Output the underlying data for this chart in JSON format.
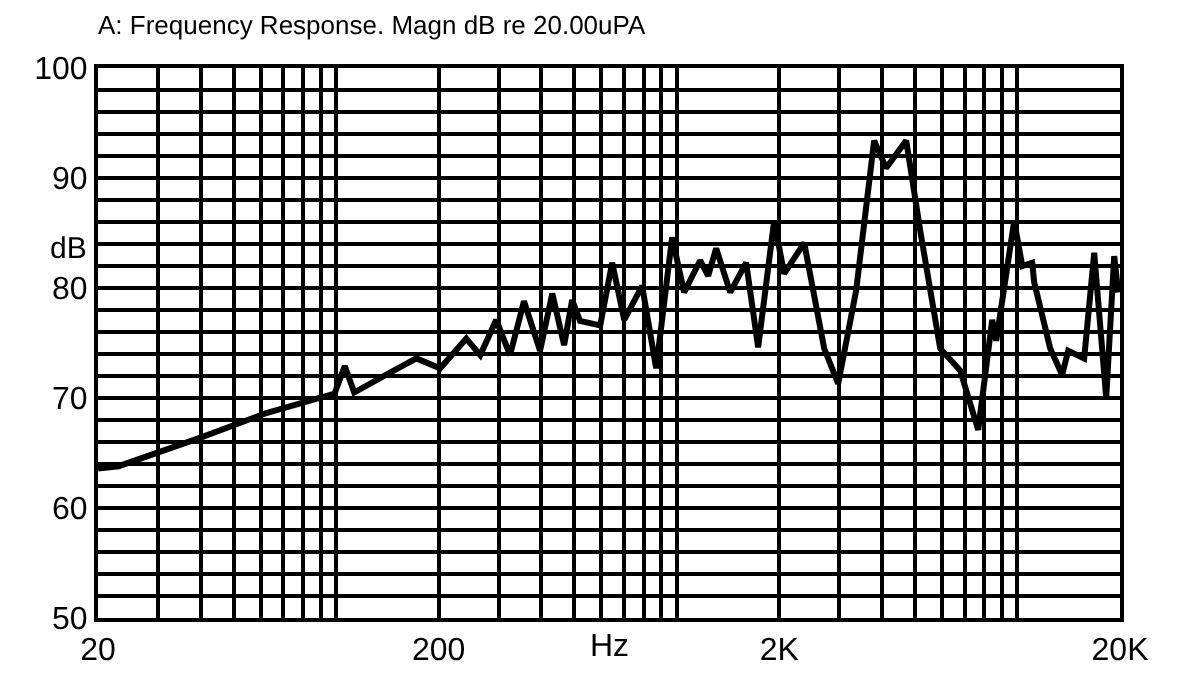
{
  "chart_data": {
    "type": "line",
    "title": "A: Frequency Response. Magn dB re 20.00uPA",
    "xlabel": "Hz",
    "ylabel": "dB",
    "log": "x",
    "grid": true,
    "marker": "none",
    "line_style": "solid",
    "xlim": [
      20,
      20000
    ],
    "ylim": [
      50,
      100
    ],
    "xticks": [
      20,
      {
        "value": 30,
        "label": null
      },
      {
        "value": 40,
        "label": null
      },
      {
        "value": 50,
        "label": null
      },
      {
        "value": 60,
        "label": null
      },
      {
        "value": 70,
        "label": null
      },
      {
        "value": 80,
        "label": null
      },
      {
        "value": 90,
        "label": null
      },
      {
        "value": 100,
        "label": null
      },
      200,
      {
        "value": 300,
        "label": null
      },
      {
        "value": 400,
        "label": null
      },
      {
        "value": 500,
        "label": null
      },
      {
        "value": 600,
        "label": null
      },
      {
        "value": 700,
        "label": null
      },
      {
        "value": 800,
        "label": null
      },
      {
        "value": 900,
        "label": null
      },
      {
        "value": 1000,
        "label": null
      },
      {
        "value": 2000,
        "label": "2K"
      },
      {
        "value": 3000,
        "label": null
      },
      {
        "value": 4000,
        "label": null
      },
      {
        "value": 5000,
        "label": null
      },
      {
        "value": 6000,
        "label": null
      },
      {
        "value": 7000,
        "label": null
      },
      {
        "value": 8000,
        "label": null
      },
      {
        "value": 9000,
        "label": null
      },
      {
        "value": 10000,
        "label": null
      },
      {
        "value": 20000,
        "label": "20K"
      }
    ],
    "yticks": [
      50,
      {
        "value": 52,
        "label": null
      },
      {
        "value": 54,
        "label": null
      },
      {
        "value": 56,
        "label": null
      },
      {
        "value": 58,
        "label": null
      },
      60,
      {
        "value": 62,
        "label": null
      },
      {
        "value": 64,
        "label": null
      },
      {
        "value": 66,
        "label": null
      },
      {
        "value": 68,
        "label": null
      },
      70,
      {
        "value": 72,
        "label": null
      },
      {
        "value": 74,
        "label": null
      },
      {
        "value": 76,
        "label": null
      },
      {
        "value": 78,
        "label": null
      },
      80,
      {
        "value": 82,
        "label": null
      },
      {
        "value": 84,
        "label": null
      },
      {
        "value": 86,
        "label": null
      },
      {
        "value": 88,
        "label": null
      },
      90,
      {
        "value": 92,
        "label": null
      },
      {
        "value": 94,
        "label": null
      },
      {
        "value": 96,
        "label": null
      },
      {
        "value": 98,
        "label": null
      },
      100
    ],
    "x": [
      20,
      23,
      40,
      62,
      99,
      106,
      113,
      140,
      172,
      202,
      241,
      265,
      295,
      324,
      356,
      397,
      431,
      467,
      493,
      520,
      596,
      646,
      701,
      791,
      870,
      969,
      1051,
      1171,
      1236,
      1305,
      1435,
      1598,
      1733,
      1931,
      2066,
      2366,
      2708,
      2977,
      3362,
      3796,
      4117,
      4715,
      5183,
      5932,
      6791,
      7670,
      8432,
      8665,
      9783,
      10330,
      11050,
      11200,
      12480,
      13530,
      14090,
      15700,
      16800,
      18220,
      19230,
      19760
    ],
    "series": [
      {
        "color": "#000000",
        "values": [
          63.6,
          63.8,
          66.4,
          68.6,
          70.4,
          72.9,
          70.5,
          72.1,
          73.6,
          72.7,
          75.4,
          73.9,
          77.1,
          73.9,
          78.8,
          74.3,
          79.5,
          74.8,
          78.9,
          77.0,
          76.6,
          82.3,
          77.1,
          80.2,
          72.7,
          84.6,
          79.6,
          82.5,
          81.1,
          83.6,
          79.6,
          82.3,
          74.6,
          86.1,
          81.3,
          84.1,
          74.5,
          71.3,
          79.8,
          93.4,
          90.9,
          93.4,
          85.2,
          74.5,
          72.5,
          67.1,
          77.1,
          75.2,
          86.1,
          82.0,
          82.3,
          80.5,
          74.5,
          72.1,
          74.3,
          73.6,
          83.2,
          70.0,
          82.9,
          79.6
        ]
      }
    ]
  }
}
